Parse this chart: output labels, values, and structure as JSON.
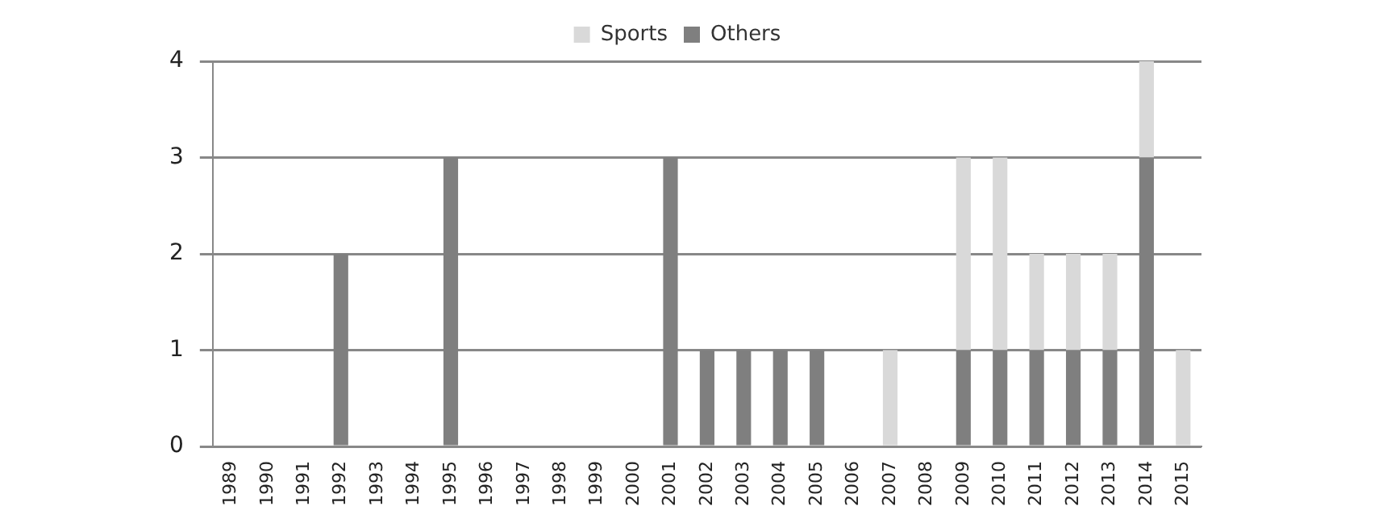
{
  "chart_data": {
    "type": "bar",
    "stacked": true,
    "categories": [
      "1989",
      "1990",
      "1991",
      "1992",
      "1993",
      "1994",
      "1995",
      "1996",
      "1997",
      "1998",
      "1999",
      "2000",
      "2001",
      "2002",
      "2003",
      "2004",
      "2005",
      "2006",
      "2007",
      "2008",
      "2009",
      "2010",
      "2011",
      "2012",
      "2013",
      "2014",
      "2015"
    ],
    "series": [
      {
        "name": "Others",
        "color": "#7f7f7f",
        "values": [
          0,
          0,
          0,
          2,
          0,
          0,
          3,
          0,
          0,
          0,
          0,
          0,
          3,
          1,
          1,
          1,
          1,
          0,
          0,
          0,
          1,
          1,
          1,
          1,
          1,
          3,
          0
        ]
      },
      {
        "name": "Sports",
        "color": "#d9d9d9",
        "values": [
          0,
          0,
          0,
          0,
          0,
          0,
          0,
          0,
          0,
          0,
          0,
          0,
          0,
          0,
          0,
          0,
          0,
          0,
          1,
          0,
          2,
          2,
          1,
          1,
          1,
          1,
          1
        ]
      }
    ],
    "ylim": [
      0,
      4
    ],
    "yticks": [
      0,
      1,
      2,
      3,
      4
    ],
    "grid": "y",
    "legend": "top"
  }
}
